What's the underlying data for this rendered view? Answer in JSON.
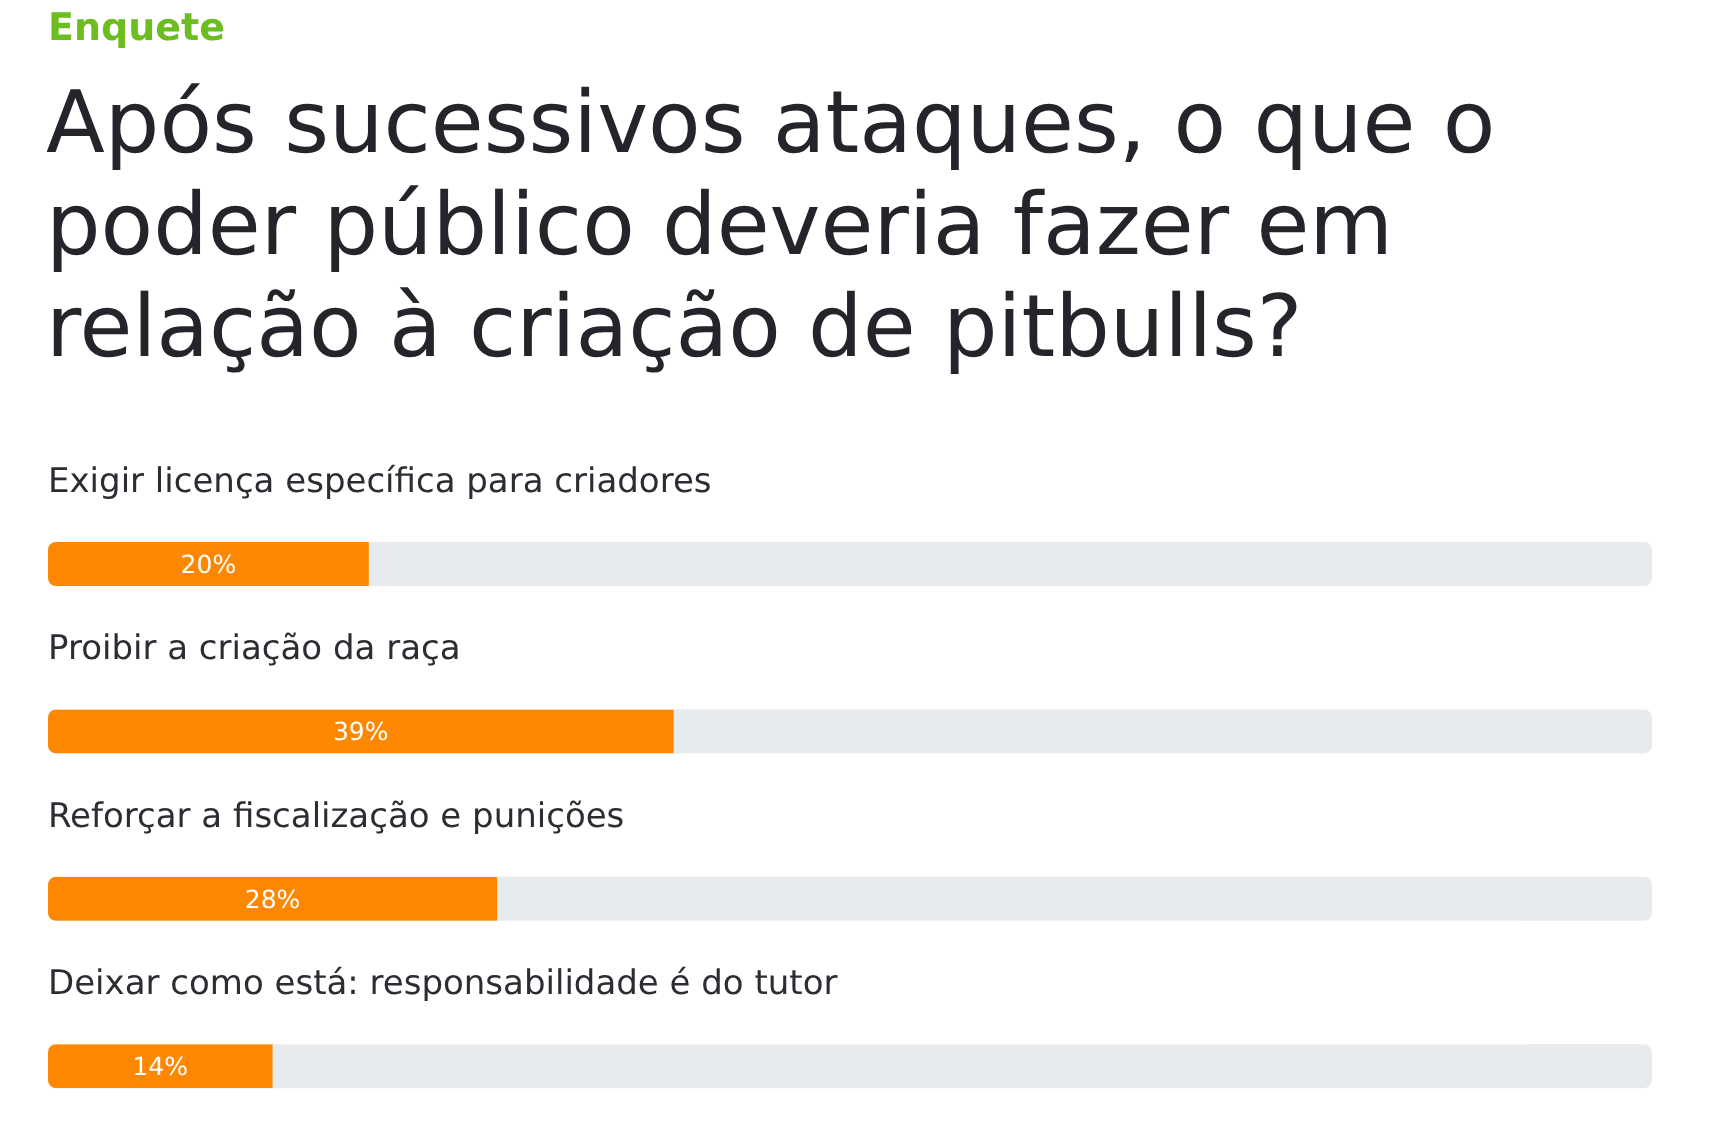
{
  "chart_data": {
    "type": "bar",
    "orientation": "horizontal",
    "subtitle": "Enquete",
    "title": "Após sucessivos ataques, o que o poder público deveria fazer em relação à criação de pitbulls?",
    "categories": [
      "Exigir licença específica para criadores",
      "Proibir a criação da raça",
      "Reforçar a fiscalização e punições",
      "Deixar como está: responsabilidade é do tutor"
    ],
    "values": [
      20,
      39,
      28,
      14
    ],
    "value_labels": [
      "20%",
      "39%",
      "28%",
      "14%"
    ],
    "color": "#fd8700",
    "xlim": [
      0,
      100
    ]
  }
}
